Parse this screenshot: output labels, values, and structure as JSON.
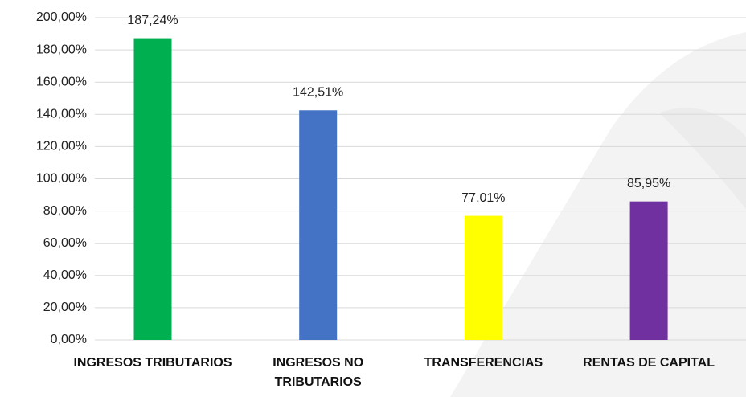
{
  "chart_data": {
    "type": "bar",
    "categories": [
      "INGRESOS TRIBUTARIOS",
      "INGRESOS NO TRIBUTARIOS",
      "TRANSFERENCIAS",
      "RENTAS DE CAPITAL"
    ],
    "values": [
      187.24,
      142.51,
      77.01,
      85.95
    ],
    "value_labels": [
      "187,24%",
      "142,51%",
      "77,01%",
      "85,95%"
    ],
    "colors": [
      "#00b050",
      "#4472c4",
      "#ffff00",
      "#7030a0"
    ],
    "ylim": [
      0,
      200
    ],
    "yticks": [
      {
        "value": 0,
        "label": "0,00%"
      },
      {
        "value": 20,
        "label": "20,00%"
      },
      {
        "value": 40,
        "label": "40,00%"
      },
      {
        "value": 60,
        "label": "60,00%"
      },
      {
        "value": 80,
        "label": "80,00%"
      },
      {
        "value": 100,
        "label": "100,00%"
      },
      {
        "value": 120,
        "label": "120,00%"
      },
      {
        "value": 140,
        "label": "140,00%"
      },
      {
        "value": 160,
        "label": "160,00%"
      },
      {
        "value": 180,
        "label": "180,00%"
      },
      {
        "value": 200,
        "label": "200,00%"
      }
    ],
    "grid": true
  }
}
